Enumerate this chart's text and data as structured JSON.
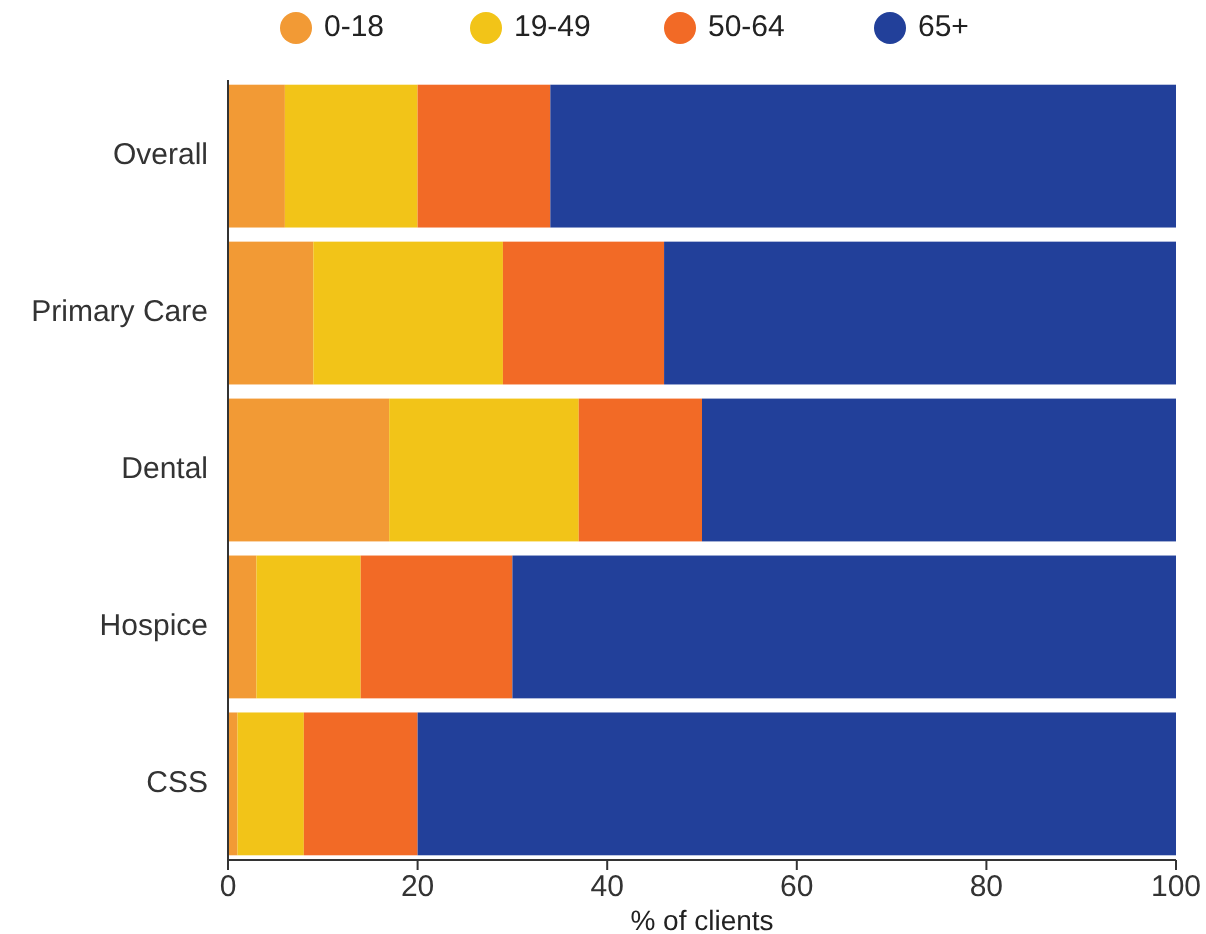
{
  "chart_data": {
    "type": "bar",
    "orientation": "horizontal",
    "stacked": true,
    "xlabel": "% of clients",
    "categories": [
      "Overall",
      "Primary Care",
      "Dental",
      "Hospice",
      "CSS"
    ],
    "series": [
      {
        "name": "0-18",
        "color": "#f29a35",
        "values": [
          6,
          9,
          17,
          3,
          1
        ]
      },
      {
        "name": "19-49",
        "color": "#f2c418",
        "values": [
          14,
          20,
          20,
          11,
          7
        ]
      },
      {
        "name": "50-64",
        "color": "#f26a26",
        "values": [
          14,
          17,
          13,
          16,
          12
        ]
      },
      {
        "name": "65+",
        "color": "#22409a",
        "values": [
          66,
          54,
          50,
          70,
          80
        ]
      }
    ],
    "xlim": [
      0,
      100
    ],
    "xticks": [
      0,
      20,
      40,
      60,
      80,
      100
    ],
    "grid": false,
    "legend": "top"
  }
}
